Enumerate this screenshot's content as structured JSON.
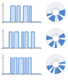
{
  "chart_data": [
    {
      "type": "line",
      "line_style": "step",
      "color": "#3a7fd5",
      "tick_labels": false,
      "grid": false,
      "x": [
        0,
        1,
        2,
        3,
        4,
        5,
        6,
        7,
        8,
        9,
        10,
        11,
        12,
        13,
        14,
        15,
        16,
        17,
        18,
        19,
        20,
        21,
        22,
        23,
        24
      ],
      "values": [
        0,
        0,
        0,
        0,
        0,
        1,
        1,
        1,
        0,
        1,
        1,
        0,
        0,
        1,
        1,
        1,
        0,
        1,
        0,
        0,
        0,
        0,
        0,
        0,
        0
      ],
      "xlim": [
        0,
        24
      ],
      "xticks": [
        0,
        6,
        12,
        18,
        24
      ],
      "ylim": [
        0,
        1.2
      ],
      "yticks": [
        0,
        1
      ]
    },
    {
      "type": "line",
      "line_style": "step",
      "color": "#3a7fd5",
      "tick_labels": false,
      "grid": false,
      "x": [
        0,
        1,
        2,
        3,
        4,
        5,
        6,
        7,
        8,
        9,
        10,
        11,
        12,
        13,
        14,
        15,
        16,
        17,
        18,
        19,
        20,
        21,
        22,
        23,
        24
      ],
      "values": [
        0,
        0,
        0,
        0,
        1,
        1,
        0,
        1,
        1,
        1,
        0,
        0,
        1,
        0,
        1,
        1,
        0,
        0,
        1,
        1,
        0,
        0,
        0,
        0,
        0
      ],
      "xlim": [
        0,
        24
      ],
      "xticks": [
        0,
        6,
        12,
        18,
        24
      ],
      "ylim": [
        0,
        1.2
      ],
      "yticks": [
        0,
        1
      ]
    },
    {
      "type": "line",
      "line_style": "step",
      "color": "#3a7fd5",
      "tick_labels": false,
      "grid": false,
      "x": [
        0,
        1,
        2,
        3,
        4,
        5,
        6,
        7,
        8,
        9,
        10,
        11,
        12,
        13,
        14,
        15,
        16,
        17,
        18,
        19,
        20,
        21,
        22,
        23,
        24
      ],
      "values": [
        0,
        0,
        0,
        0,
        0,
        1,
        0,
        1,
        1,
        0,
        1,
        1,
        1,
        0,
        1,
        0,
        1,
        1,
        0,
        0,
        0,
        0,
        0,
        0,
        0
      ],
      "xlim": [
        0,
        24
      ],
      "xticks": [
        0,
        6,
        12,
        18,
        24
      ],
      "ylim": [
        0,
        1.2
      ],
      "yticks": [
        0,
        1
      ]
    }
  ]
}
